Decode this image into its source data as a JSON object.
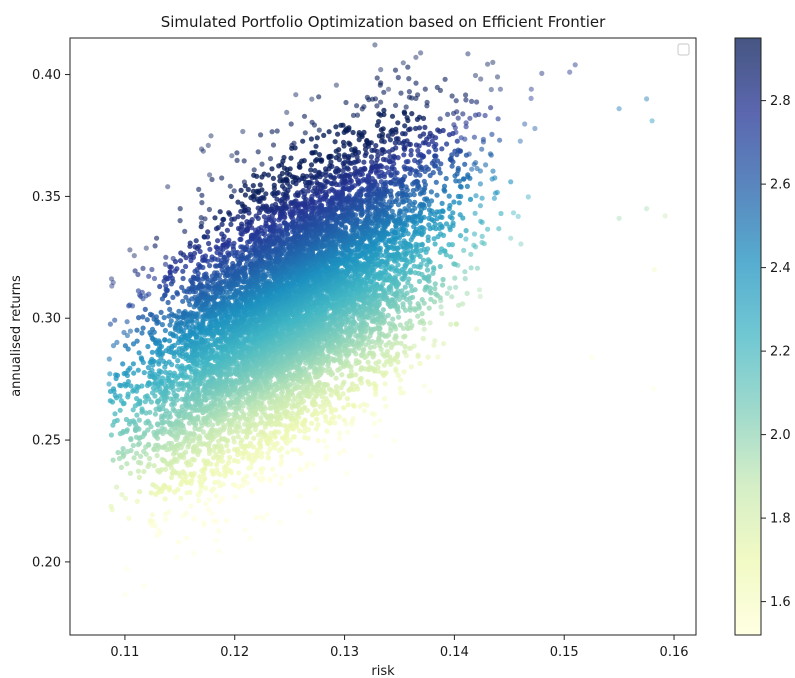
{
  "chart_data": {
    "type": "scatter",
    "title": "Simulated Portfolio Optimization based on Efficient Frontier",
    "xlabel": "risk",
    "ylabel": "annualised returns",
    "xlim": [
      0.105,
      0.162
    ],
    "ylim": [
      0.17,
      0.415
    ],
    "x_ticks": [
      {
        "value": 0.11,
        "label": "0.11"
      },
      {
        "value": 0.12,
        "label": "0.12"
      },
      {
        "value": 0.13,
        "label": "0.13"
      },
      {
        "value": 0.14,
        "label": "0.14"
      },
      {
        "value": 0.15,
        "label": "0.15"
      },
      {
        "value": 0.16,
        "label": "0.16"
      }
    ],
    "y_ticks": [
      {
        "value": 0.2,
        "label": "0.20"
      },
      {
        "value": 0.25,
        "label": "0.25"
      },
      {
        "value": 0.3,
        "label": "0.30"
      },
      {
        "value": 0.35,
        "label": "0.35"
      },
      {
        "value": 0.4,
        "label": "0.40"
      }
    ],
    "colorbar": {
      "colormap": "YlGnBu",
      "range": [
        1.52,
        2.95
      ],
      "ticks": [
        {
          "value": 1.6,
          "label": "1.6"
        },
        {
          "value": 1.8,
          "label": "1.8"
        },
        {
          "value": 2.0,
          "label": "2.0"
        },
        {
          "value": 2.2,
          "label": "2.2"
        },
        {
          "value": 2.4,
          "label": "2.4"
        },
        {
          "value": 2.6,
          "label": "2.6"
        },
        {
          "value": 2.8,
          "label": "2.8"
        }
      ],
      "colors": [
        "#ffffd9",
        "#edf8b1",
        "#c7e9b4",
        "#7fcdbb",
        "#41b6c4",
        "#1d91c0",
        "#225ea8",
        "#253494",
        "#081d58"
      ]
    },
    "point_cloud": {
      "center": [
        0.125,
        0.305
      ],
      "std": [
        0.0068,
        0.033
      ],
      "correlation": 0.6,
      "count": 9000
    },
    "outliers": [
      {
        "x": 0.151,
        "y": 0.404
      },
      {
        "x": 0.1505,
        "y": 0.401
      },
      {
        "x": 0.1575,
        "y": 0.39
      },
      {
        "x": 0.158,
        "y": 0.381
      },
      {
        "x": 0.155,
        "y": 0.386
      },
      {
        "x": 0.1592,
        "y": 0.342
      },
      {
        "x": 0.1575,
        "y": 0.345
      },
      {
        "x": 0.155,
        "y": 0.341
      },
      {
        "x": 0.1582,
        "y": 0.32
      },
      {
        "x": 0.1581,
        "y": 0.271
      },
      {
        "x": 0.1525,
        "y": 0.284
      },
      {
        "x": 0.1435,
        "y": 0.405
      },
      {
        "x": 0.134,
        "y": 0.394
      },
      {
        "x": 0.147,
        "y": 0.394
      }
    ],
    "legend": "top-right, empty"
  }
}
